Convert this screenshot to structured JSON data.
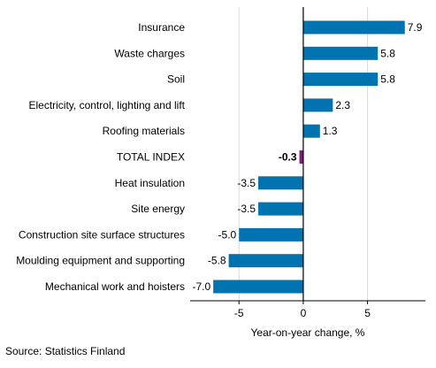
{
  "chart_data": {
    "type": "bar",
    "orientation": "horizontal",
    "categories": [
      "Insurance",
      "Waste charges",
      "Soil",
      "Electricity, control, lighting and lift",
      "Roofing materials",
      "TOTAL INDEX",
      "Heat insulation",
      "Site energy",
      "Construction site surface structures",
      "Moulding equipment and supporting",
      "Mechanical work and hoisters"
    ],
    "values": [
      7.9,
      5.8,
      5.8,
      2.3,
      1.3,
      -0.3,
      -3.5,
      -3.5,
      -5.0,
      -5.8,
      -7.0
    ],
    "value_labels": [
      "7.9",
      "5.8",
      "5.8",
      "2.3",
      "1.3",
      "-0.3",
      "-3.5",
      "-3.5",
      "-5.0",
      "-5.8",
      "-7.0"
    ],
    "highlight_category": "TOTAL INDEX",
    "xlabel": "Year-on-year change, %",
    "xlim": [
      -8.8,
      9.5
    ],
    "xticks": [
      -5,
      0,
      5
    ],
    "xtick_labels": [
      "-5",
      "0",
      "5"
    ],
    "grid": "vertical",
    "colors": {
      "bar": "#0073b0",
      "highlight": "#8b1a7f",
      "grid": "#d9d9d9",
      "axis": "#000000"
    }
  },
  "source": "Source: Statistics Finland"
}
